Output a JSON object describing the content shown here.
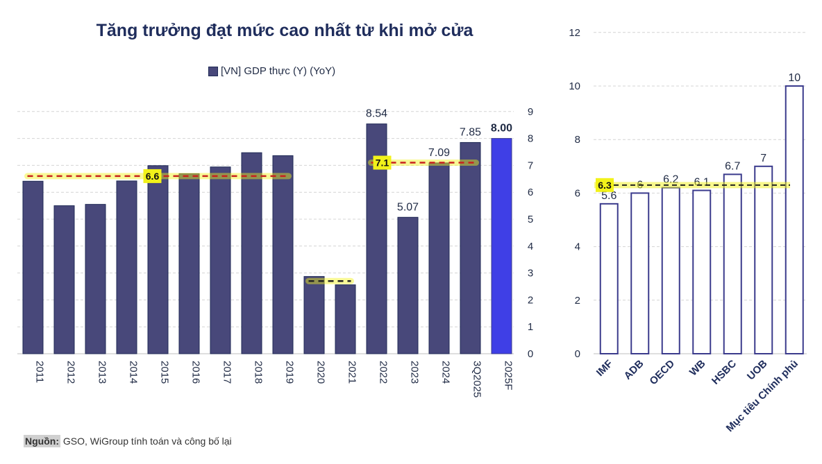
{
  "title": "Tăng trưởng đạt mức cao nhất từ khi mở cửa",
  "legend": "[VN] GDP thực (Y) (YoY)",
  "source_label": "Nguồn:",
  "source_text": "GSO, WiGroup tính toán và công bố lại",
  "colors": {
    "bar": "#48487a",
    "bar_highlight": "#3f3fe6",
    "bar_border": "#1f2a55",
    "avg_line": "#c8201e",
    "highlight": "#f2f21a",
    "grid": "#d4d4d4",
    "axis_text": "#1f2a44",
    "forecast_bar_border": "#3a3a8c"
  },
  "chart_data": [
    {
      "type": "bar",
      "title": "Tăng trưởng đạt mức cao nhất từ khi mở cửa",
      "categories": [
        "2011",
        "2012",
        "2013",
        "2014",
        "2015",
        "2016",
        "2017",
        "2018",
        "2019",
        "2020",
        "2021",
        "2022",
        "2023",
        "2024",
        "3Q2025",
        "2025F"
      ],
      "series": [
        {
          "name": "[VN] GDP thực (Y) (YoY)",
          "values": [
            6.41,
            5.5,
            5.55,
            6.42,
            6.99,
            6.69,
            6.94,
            7.47,
            7.36,
            2.87,
            2.56,
            8.54,
            5.07,
            7.09,
            7.85,
            8.0
          ]
        }
      ],
      "data_labels": [
        {
          "category": "2022",
          "text": "8.54"
        },
        {
          "category": "2023",
          "text": "5.07"
        },
        {
          "category": "2024",
          "text": "7.09"
        },
        {
          "category": "3Q2025",
          "text": "7.85"
        },
        {
          "category": "2025F",
          "text": "8.00",
          "bold": true
        }
      ],
      "yaxis": {
        "side": "right",
        "ylim": [
          0,
          9
        ],
        "ticks": [
          0,
          1,
          2,
          3,
          4,
          5,
          6,
          7,
          8,
          9
        ]
      },
      "grid": true,
      "average_lines": [
        {
          "from": "2011",
          "to": "2019",
          "value": 6.6,
          "label": "6.6",
          "label_at": "2015"
        },
        {
          "from": "2020",
          "to": "2021",
          "value": 2.7,
          "label": ""
        },
        {
          "from": "2022",
          "to": "3Q2025",
          "value": 7.1,
          "label": "7.1",
          "label_at": "2022"
        }
      ]
    },
    {
      "type": "bar",
      "categories": [
        "IMF",
        "ADB",
        "OECD",
        "WB",
        "HSBC",
        "UOB",
        "Mục tiêu Chính phủ"
      ],
      "values": [
        5.6,
        6.0,
        6.2,
        6.1,
        6.7,
        7.0,
        10.0
      ],
      "labels": [
        "5.6",
        "6",
        "6.2",
        "6.1",
        "6.7",
        "7",
        "10"
      ],
      "yaxis": {
        "side": "left",
        "ylim": [
          0,
          12
        ],
        "ticks": [
          0,
          2,
          4,
          6,
          8,
          10,
          12
        ]
      },
      "grid": true,
      "average_line": {
        "value": 6.3,
        "label": "6.3"
      }
    }
  ]
}
